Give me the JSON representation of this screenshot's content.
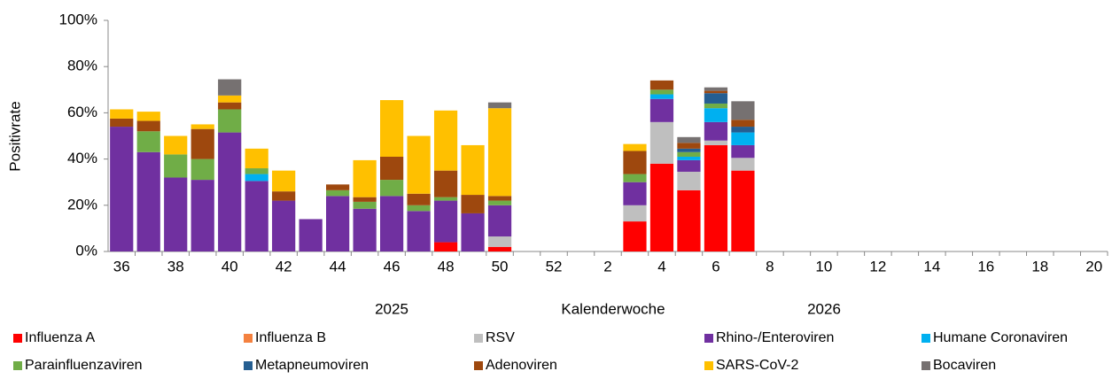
{
  "chart_data": {
    "type": "stacked_bar",
    "y_label": "Positivrate",
    "x_label": "Kalenderwoche",
    "annotations": [
      "2025",
      "2026"
    ],
    "categories": [
      "36",
      null,
      "38",
      null,
      "40",
      null,
      "42",
      null,
      "44",
      null,
      "46",
      null,
      "48",
      null,
      "50",
      null,
      "52",
      null,
      "2",
      null,
      "4",
      null,
      "6",
      null,
      "8",
      null,
      "10",
      null,
      "12",
      null,
      "14",
      null,
      "16",
      null,
      "18",
      null,
      "20"
    ],
    "ylim": [
      0,
      100
    ],
    "yticks": [
      {
        "value": 0,
        "label": "0%"
      },
      {
        "value": 20,
        "label": "20%"
      },
      {
        "value": 40,
        "label": "40%"
      },
      {
        "value": 60,
        "label": "60%"
      },
      {
        "value": 80,
        "label": "80%"
      },
      {
        "value": 100,
        "label": "100%"
      }
    ],
    "series": [
      {
        "name": "Influenza A",
        "color": "#ff0000",
        "values": [
          0,
          0,
          0,
          0,
          0,
          0,
          0,
          0,
          0,
          0,
          0,
          0,
          4,
          0,
          2,
          null,
          null,
          null,
          null,
          13,
          38,
          26.5,
          46,
          35,
          null,
          null,
          null,
          null,
          null,
          null,
          null,
          null,
          null,
          null,
          null,
          null,
          null
        ]
      },
      {
        "name": "Influenza B",
        "color": "#f4813f",
        "values": [
          0,
          0,
          0,
          0,
          0,
          0,
          0,
          0,
          0,
          0,
          0,
          0,
          0,
          0,
          0,
          null,
          null,
          null,
          null,
          0,
          0,
          0,
          0,
          0,
          null,
          null,
          null,
          null,
          null,
          null,
          null,
          null,
          null,
          null,
          null,
          null,
          null
        ]
      },
      {
        "name": "RSV",
        "color": "#bfbfbf",
        "values": [
          0,
          0,
          0,
          0,
          0,
          0,
          0,
          0,
          0,
          0,
          0,
          0,
          0,
          0,
          4.5,
          null,
          null,
          null,
          null,
          7,
          18,
          8,
          2,
          5.5,
          null,
          null,
          null,
          null,
          null,
          null,
          null,
          null,
          null,
          null,
          null,
          null,
          null
        ]
      },
      {
        "name": "Rhino-/Enteroviren",
        "color": "#7030a0",
        "values": [
          54,
          43,
          32,
          31,
          51.5,
          30.5,
          22,
          14,
          24,
          18.5,
          24,
          17.5,
          18,
          16.5,
          13.5,
          null,
          null,
          null,
          null,
          10,
          10,
          5,
          8,
          5.5,
          null,
          null,
          null,
          null,
          null,
          null,
          null,
          null,
          null,
          null,
          null,
          null,
          null
        ]
      },
      {
        "name": "Humane Coronaviren",
        "color": "#00b0f0",
        "values": [
          0,
          0,
          0,
          0,
          0,
          3,
          0,
          0,
          0,
          0,
          0,
          0,
          0,
          0,
          0,
          null,
          null,
          null,
          null,
          0,
          2,
          1.5,
          6,
          5.5,
          null,
          null,
          null,
          null,
          null,
          null,
          null,
          null,
          null,
          null,
          null,
          null,
          null
        ]
      },
      {
        "name": "Parainfluenzaviren",
        "color": "#70ad47",
        "values": [
          0,
          9,
          10,
          9,
          10,
          2.5,
          0,
          0,
          2.5,
          3,
          7,
          2.5,
          1.5,
          0,
          2,
          null,
          null,
          null,
          null,
          3.5,
          2,
          2,
          2,
          0,
          null,
          null,
          null,
          null,
          null,
          null,
          null,
          null,
          null,
          null,
          null,
          null,
          null
        ]
      },
      {
        "name": "Metapneumoviren",
        "color": "#255e91",
        "values": [
          0,
          0,
          0,
          0,
          0,
          0,
          0,
          0,
          0,
          0,
          0,
          0,
          0,
          0,
          0,
          null,
          null,
          null,
          null,
          0,
          0,
          1.5,
          4.5,
          2.5,
          null,
          null,
          null,
          null,
          null,
          null,
          null,
          null,
          null,
          null,
          null,
          null,
          null
        ]
      },
      {
        "name": "Adenoviren",
        "color": "#9e480e",
        "values": [
          3.5,
          4.5,
          0,
          13,
          3,
          0,
          4,
          0,
          2.5,
          2,
          10,
          5,
          11.5,
          8,
          2,
          null,
          null,
          null,
          null,
          10,
          4,
          2.5,
          1,
          3,
          null,
          null,
          null,
          null,
          null,
          null,
          null,
          null,
          null,
          null,
          null,
          null,
          null
        ]
      },
      {
        "name": "SARS-CoV-2",
        "color": "#ffc000",
        "values": [
          4,
          4,
          8,
          2,
          3,
          8.5,
          9,
          0,
          0,
          16,
          24.5,
          25,
          26,
          21.5,
          38,
          null,
          null,
          null,
          null,
          3,
          0,
          0,
          0,
          0,
          null,
          null,
          null,
          null,
          null,
          null,
          null,
          null,
          null,
          null,
          null,
          null,
          null
        ]
      },
      {
        "name": "Bocaviren",
        "color": "#767171",
        "values": [
          0,
          0,
          0,
          0,
          7,
          0,
          0,
          0,
          0,
          0,
          0,
          0,
          0,
          0,
          2.5,
          null,
          null,
          null,
          null,
          0,
          0,
          2.5,
          1.5,
          8,
          null,
          null,
          null,
          null,
          null,
          null,
          null,
          null,
          null,
          null,
          null,
          null,
          null
        ]
      }
    ]
  }
}
